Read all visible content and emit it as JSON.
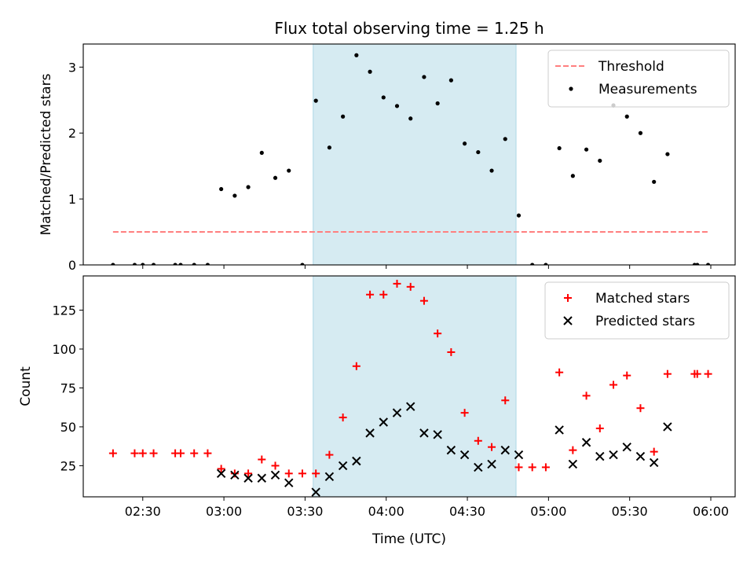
{
  "chart_data": [
    {
      "type": "scatter",
      "title": "Flux total observing time = 1.25 h",
      "xlabel": "",
      "ylabel": "Matched/Predicted stars",
      "xlim": [
        "02:08",
        "06:09"
      ],
      "ylim": [
        0,
        3.35
      ],
      "yticks": [
        0,
        1,
        2,
        3
      ],
      "grid": false,
      "legend_position": "top-right",
      "shaded_interval": {
        "start": "03:33",
        "end": "04:48",
        "color": "#add8e6"
      },
      "threshold": {
        "name": "Threshold",
        "value": 0.5,
        "x_start": "02:19",
        "x_end": "05:59",
        "color": "#ff7f7f",
        "style": "dashed"
      },
      "series": [
        {
          "name": "Measurements",
          "marker": "dot",
          "color": "#000000",
          "points": [
            [
              "02:19",
              0
            ],
            [
              "02:27",
              0
            ],
            [
              "02:30",
              0
            ],
            [
              "02:34",
              0
            ],
            [
              "02:42",
              0
            ],
            [
              "02:44",
              0
            ],
            [
              "02:49",
              0
            ],
            [
              "02:54",
              0
            ],
            [
              "02:59",
              1.15
            ],
            [
              "03:04",
              1.05
            ],
            [
              "03:09",
              1.18
            ],
            [
              "03:14",
              1.7
            ],
            [
              "03:19",
              1.32
            ],
            [
              "03:24",
              1.43
            ],
            [
              "03:29",
              0
            ],
            [
              "03:34",
              2.49
            ],
            [
              "03:39",
              1.78
            ],
            [
              "03:44",
              2.25
            ],
            [
              "03:49",
              3.18
            ],
            [
              "03:54",
              2.93
            ],
            [
              "03:59",
              2.54
            ],
            [
              "04:04",
              2.41
            ],
            [
              "04:09",
              2.22
            ],
            [
              "04:14",
              2.85
            ],
            [
              "04:19",
              2.45
            ],
            [
              "04:24",
              2.8
            ],
            [
              "04:29",
              1.84
            ],
            [
              "04:34",
              1.71
            ],
            [
              "04:39",
              1.43
            ],
            [
              "04:44",
              1.91
            ],
            [
              "04:49",
              0.75
            ],
            [
              "04:54",
              0
            ],
            [
              "04:59",
              0
            ],
            [
              "05:04",
              1.77
            ],
            [
              "05:09",
              1.35
            ],
            [
              "05:14",
              1.75
            ],
            [
              "05:19",
              1.58
            ],
            [
              "05:24",
              2.42
            ],
            [
              "05:29",
              2.25
            ],
            [
              "05:34",
              2.0
            ],
            [
              "05:39",
              1.26
            ],
            [
              "05:44",
              1.68
            ],
            [
              "05:54",
              0
            ],
            [
              "05:55",
              0
            ],
            [
              "05:59",
              0
            ]
          ]
        }
      ]
    },
    {
      "type": "scatter",
      "title": "",
      "xlabel": "Time (UTC)",
      "ylabel": "Count",
      "xlim": [
        "02:08",
        "06:09"
      ],
      "ylim": [
        5,
        147
      ],
      "yticks": [
        25,
        50,
        75,
        100,
        125
      ],
      "xticks": [
        "02:30",
        "03:00",
        "03:30",
        "04:00",
        "04:30",
        "05:00",
        "05:30",
        "06:00"
      ],
      "grid": false,
      "legend_position": "top-right",
      "shaded_interval": {
        "start": "03:33",
        "end": "04:48",
        "color": "#add8e6"
      },
      "series": [
        {
          "name": "Matched stars",
          "marker": "plus",
          "color": "#ff0000",
          "points": [
            [
              "02:19",
              33
            ],
            [
              "02:27",
              33
            ],
            [
              "02:30",
              33
            ],
            [
              "02:34",
              33
            ],
            [
              "02:42",
              33
            ],
            [
              "02:44",
              33
            ],
            [
              "02:49",
              33
            ],
            [
              "02:54",
              33
            ],
            [
              "02:59",
              23
            ],
            [
              "03:04",
              20
            ],
            [
              "03:09",
              20
            ],
            [
              "03:14",
              29
            ],
            [
              "03:19",
              25
            ],
            [
              "03:24",
              20
            ],
            [
              "03:29",
              20
            ],
            [
              "03:34",
              20
            ],
            [
              "03:39",
              32
            ],
            [
              "03:44",
              56
            ],
            [
              "03:49",
              89
            ],
            [
              "03:54",
              135
            ],
            [
              "03:59",
              135
            ],
            [
              "04:04",
              142
            ],
            [
              "04:09",
              140
            ],
            [
              "04:14",
              131
            ],
            [
              "04:19",
              110
            ],
            [
              "04:24",
              98
            ],
            [
              "04:29",
              59
            ],
            [
              "04:34",
              41
            ],
            [
              "04:39",
              37
            ],
            [
              "04:44",
              67
            ],
            [
              "04:49",
              24
            ],
            [
              "04:54",
              24
            ],
            [
              "04:59",
              24
            ],
            [
              "05:04",
              85
            ],
            [
              "05:09",
              35
            ],
            [
              "05:14",
              70
            ],
            [
              "05:19",
              49
            ],
            [
              "05:24",
              77
            ],
            [
              "05:29",
              83
            ],
            [
              "05:34",
              62
            ],
            [
              "05:39",
              34
            ],
            [
              "05:44",
              84
            ],
            [
              "05:54",
              84
            ],
            [
              "05:55",
              84
            ],
            [
              "05:59",
              84
            ]
          ]
        },
        {
          "name": "Predicted stars",
          "marker": "x",
          "color": "#000000",
          "points": [
            [
              "02:59",
              20
            ],
            [
              "03:04",
              19
            ],
            [
              "03:09",
              17
            ],
            [
              "03:14",
              17
            ],
            [
              "03:19",
              19
            ],
            [
              "03:24",
              14
            ],
            [
              "03:34",
              8
            ],
            [
              "03:39",
              18
            ],
            [
              "03:44",
              25
            ],
            [
              "03:49",
              28
            ],
            [
              "03:54",
              46
            ],
            [
              "03:59",
              53
            ],
            [
              "04:04",
              59
            ],
            [
              "04:09",
              63
            ],
            [
              "04:14",
              46
            ],
            [
              "04:19",
              45
            ],
            [
              "04:24",
              35
            ],
            [
              "04:29",
              32
            ],
            [
              "04:34",
              24
            ],
            [
              "04:39",
              26
            ],
            [
              "04:44",
              35
            ],
            [
              "04:49",
              32
            ],
            [
              "05:04",
              48
            ],
            [
              "05:09",
              26
            ],
            [
              "05:14",
              40
            ],
            [
              "05:19",
              31
            ],
            [
              "05:24",
              32
            ],
            [
              "05:29",
              37
            ],
            [
              "05:34",
              31
            ],
            [
              "05:39",
              27
            ],
            [
              "05:44",
              50
            ]
          ]
        }
      ]
    }
  ]
}
